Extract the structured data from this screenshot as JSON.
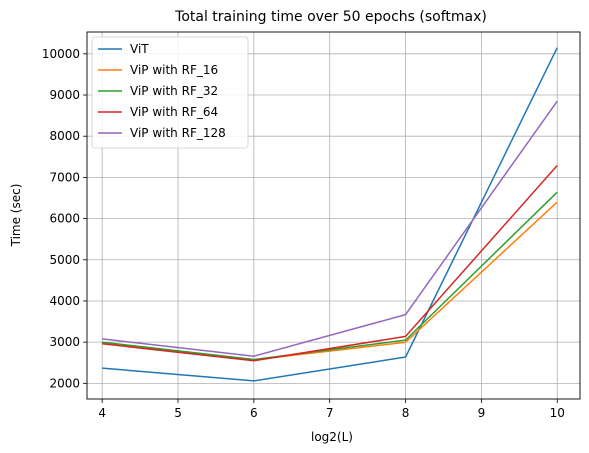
{
  "chart_data": {
    "type": "line",
    "title": "Total training time over 50 epochs (softmax)",
    "xlabel": "log2(L)",
    "ylabel": "Time (sec)",
    "xlim": [
      3.8,
      10.3
    ],
    "ylim": [
      1620,
      10530
    ],
    "xticks": [
      4,
      5,
      6,
      7,
      8,
      9,
      10
    ],
    "yticks": [
      2000,
      3000,
      4000,
      5000,
      6000,
      7000,
      8000,
      9000,
      10000
    ],
    "grid": true,
    "legend_position": "top-left",
    "x": [
      4,
      6,
      8,
      10
    ],
    "series": [
      {
        "name": "ViT",
        "color": "#1f77b4",
        "values": [
          2370,
          2060,
          2640,
          10150
        ]
      },
      {
        "name": "ViP with RF_16",
        "color": "#ff7f0e",
        "values": [
          2990,
          2570,
          3000,
          6400
        ]
      },
      {
        "name": "ViP with RF_32",
        "color": "#2ca02c",
        "values": [
          3000,
          2580,
          3050,
          6640
        ]
      },
      {
        "name": "ViP with RF_64",
        "color": "#d62728",
        "values": [
          2960,
          2550,
          3140,
          7290
        ]
      },
      {
        "name": "ViP with RF_128",
        "color": "#9467bd",
        "values": [
          3080,
          2660,
          3670,
          8850
        ]
      }
    ]
  }
}
